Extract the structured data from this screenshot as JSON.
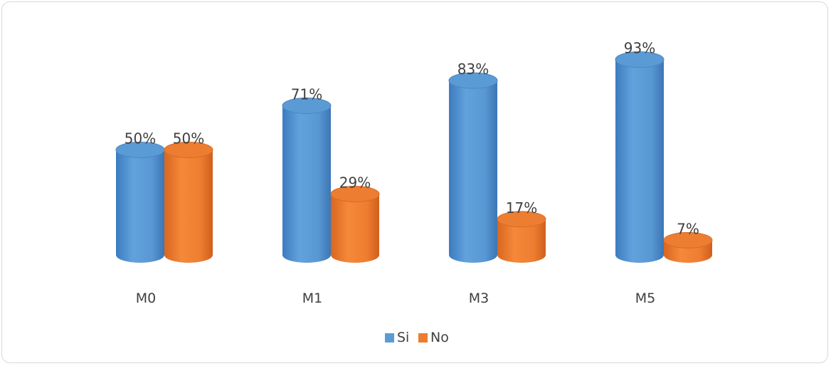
{
  "chart_data": {
    "type": "bar",
    "style": "3d-cylinder",
    "categories": [
      "M0",
      "M1",
      "M3",
      "M5"
    ],
    "series": [
      {
        "name": "Si",
        "values": [
          50,
          71,
          83,
          93
        ],
        "labels": [
          "50%",
          "71%",
          "83%",
          "93%"
        ],
        "color": "#5b9bd5"
      },
      {
        "name": "No",
        "values": [
          50,
          29,
          17,
          7
        ],
        "labels": [
          "50%",
          "29%",
          "17%",
          "7%"
        ],
        "color": "#ed7d31"
      }
    ],
    "ylim": [
      0,
      100
    ],
    "grid": false,
    "legend_position": "bottom"
  }
}
